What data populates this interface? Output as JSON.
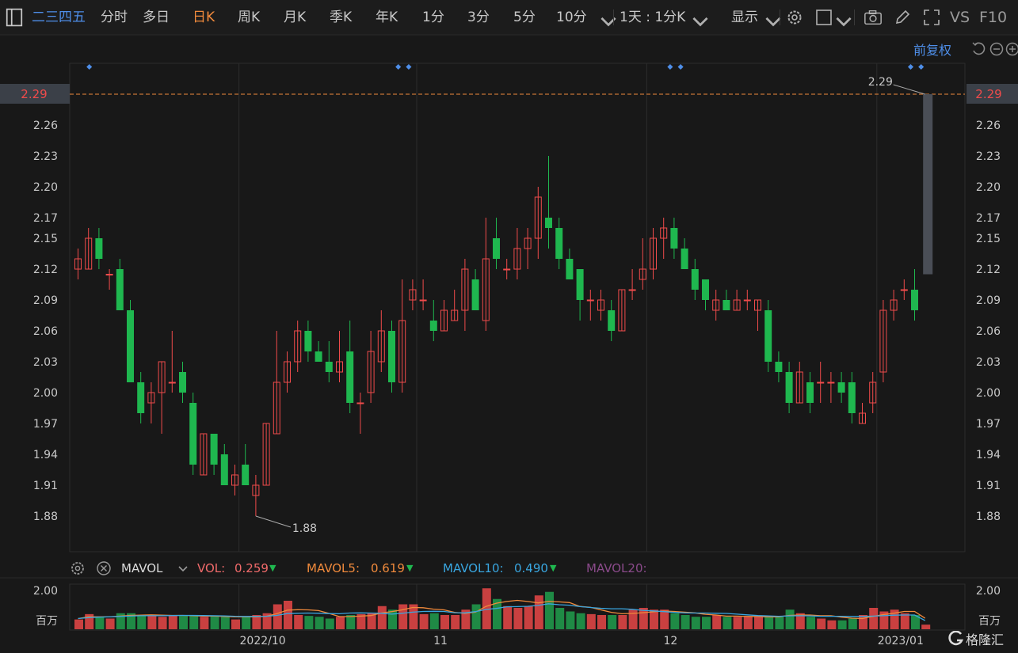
{
  "toolbar": {
    "stock_name": "二三四五",
    "tabs": [
      "分时",
      "多日",
      "日K",
      "周K",
      "月K",
      "季K",
      "年K",
      "1分",
      "3分",
      "5分",
      "10分"
    ],
    "active_tab": "日K",
    "period_select": "1天 : 1分K",
    "display_label": "显示",
    "vs_label": "VS",
    "f10_label": "F10"
  },
  "adjust_label": "前复权",
  "colors": {
    "up": "#f04b4b",
    "down": "#1fb74f",
    "accent": "#f08a3c",
    "link": "#4e8ee8",
    "background": "#181818"
  },
  "price_badge": "2.29",
  "indicator": {
    "name": "MAVOL",
    "vol_label": "VOL:",
    "vol_value": "0.259",
    "mavol5_label": "MAVOL5:",
    "mavol5_value": "0.619",
    "mavol10_label": "MAVOL10:",
    "mavol10_value": "0.490",
    "mavol20_label": "MAVOL20:"
  },
  "chart_data": {
    "type": "candlestick",
    "ylim": [
      1.86,
      2.32
    ],
    "yticks": [
      "2.29",
      "2.26",
      "2.23",
      "2.20",
      "2.17",
      "2.15",
      "2.12",
      "2.09",
      "2.06",
      "2.03",
      "2.00",
      "1.97",
      "1.94",
      "1.91",
      "1.88"
    ],
    "xticks": [
      "2022/10",
      "11",
      "12",
      "2023/01"
    ],
    "last_price": "2.29",
    "high_annotation": "2.29",
    "low_annotation": "1.88",
    "candles": [
      {
        "o": 2.12,
        "h": 2.14,
        "l": 2.11,
        "c": 2.13
      },
      {
        "o": 2.12,
        "h": 2.16,
        "l": 2.12,
        "c": 2.15
      },
      {
        "o": 2.15,
        "h": 2.16,
        "l": 2.12,
        "c": 2.13
      },
      {
        "o": 2.115,
        "h": 2.12,
        "l": 2.1,
        "c": 2.115
      },
      {
        "o": 2.12,
        "h": 2.13,
        "l": 2.08,
        "c": 2.08
      },
      {
        "o": 2.08,
        "h": 2.09,
        "l": 2.01,
        "c": 2.01
      },
      {
        "o": 2.01,
        "h": 2.02,
        "l": 1.97,
        "c": 1.98
      },
      {
        "o": 1.99,
        "h": 2.01,
        "l": 1.97,
        "c": 2.0
      },
      {
        "o": 2.0,
        "h": 2.03,
        "l": 1.96,
        "c": 2.03
      },
      {
        "o": 2.01,
        "h": 2.06,
        "l": 2.0,
        "c": 2.01
      },
      {
        "o": 2.02,
        "h": 2.03,
        "l": 1.99,
        "c": 2.0
      },
      {
        "o": 1.99,
        "h": 2.0,
        "l": 1.92,
        "c": 1.93
      },
      {
        "o": 1.92,
        "h": 1.96,
        "l": 1.92,
        "c": 1.96
      },
      {
        "o": 1.96,
        "h": 1.96,
        "l": 1.92,
        "c": 1.93
      },
      {
        "o": 1.94,
        "h": 1.95,
        "l": 1.91,
        "c": 1.91
      },
      {
        "o": 1.91,
        "h": 1.93,
        "l": 1.9,
        "c": 1.92
      },
      {
        "o": 1.93,
        "h": 1.95,
        "l": 1.91,
        "c": 1.91
      },
      {
        "o": 1.9,
        "h": 1.92,
        "l": 1.88,
        "c": 1.91
      },
      {
        "o": 1.91,
        "h": 1.97,
        "l": 1.91,
        "c": 1.97
      },
      {
        "o": 1.96,
        "h": 2.06,
        "l": 1.96,
        "c": 2.01
      },
      {
        "o": 2.01,
        "h": 2.04,
        "l": 2.0,
        "c": 2.03
      },
      {
        "o": 2.03,
        "h": 2.07,
        "l": 2.02,
        "c": 2.06
      },
      {
        "o": 2.06,
        "h": 2.07,
        "l": 2.03,
        "c": 2.04
      },
      {
        "o": 2.04,
        "h": 2.05,
        "l": 2.03,
        "c": 2.03
      },
      {
        "o": 2.03,
        "h": 2.05,
        "l": 2.01,
        "c": 2.02
      },
      {
        "o": 2.02,
        "h": 2.06,
        "l": 2.01,
        "c": 2.03
      },
      {
        "o": 2.04,
        "h": 2.07,
        "l": 1.98,
        "c": 1.99
      },
      {
        "o": 1.99,
        "h": 2.0,
        "l": 1.96,
        "c": 1.99
      },
      {
        "o": 2.0,
        "h": 2.06,
        "l": 1.99,
        "c": 2.04
      },
      {
        "o": 2.03,
        "h": 2.08,
        "l": 2.02,
        "c": 2.06
      },
      {
        "o": 2.06,
        "h": 2.07,
        "l": 2.0,
        "c": 2.01
      },
      {
        "o": 2.01,
        "h": 2.11,
        "l": 2.0,
        "c": 2.07
      },
      {
        "o": 2.09,
        "h": 2.11,
        "l": 2.08,
        "c": 2.1
      },
      {
        "o": 2.09,
        "h": 2.11,
        "l": 2.08,
        "c": 2.09
      },
      {
        "o": 2.07,
        "h": 2.09,
        "l": 2.05,
        "c": 2.06
      },
      {
        "o": 2.06,
        "h": 2.09,
        "l": 2.06,
        "c": 2.08
      },
      {
        "o": 2.07,
        "h": 2.1,
        "l": 2.07,
        "c": 2.08
      },
      {
        "o": 2.08,
        "h": 2.13,
        "l": 2.06,
        "c": 2.12
      },
      {
        "o": 2.11,
        "h": 2.12,
        "l": 2.08,
        "c": 2.08
      },
      {
        "o": 2.07,
        "h": 2.17,
        "l": 2.06,
        "c": 2.13
      },
      {
        "o": 2.15,
        "h": 2.17,
        "l": 2.12,
        "c": 2.13
      },
      {
        "o": 2.12,
        "h": 2.13,
        "l": 2.11,
        "c": 2.12
      },
      {
        "o": 2.12,
        "h": 2.16,
        "l": 2.11,
        "c": 2.14
      },
      {
        "o": 2.14,
        "h": 2.16,
        "l": 2.12,
        "c": 2.15
      },
      {
        "o": 2.15,
        "h": 2.2,
        "l": 2.13,
        "c": 2.19
      },
      {
        "o": 2.17,
        "h": 2.23,
        "l": 2.14,
        "c": 2.16
      },
      {
        "o": 2.16,
        "h": 2.17,
        "l": 2.12,
        "c": 2.13
      },
      {
        "o": 2.13,
        "h": 2.14,
        "l": 2.11,
        "c": 2.11
      },
      {
        "o": 2.12,
        "h": 2.12,
        "l": 2.07,
        "c": 2.09
      },
      {
        "o": 2.09,
        "h": 2.1,
        "l": 2.07,
        "c": 2.09
      },
      {
        "o": 2.08,
        "h": 2.1,
        "l": 2.07,
        "c": 2.09
      },
      {
        "o": 2.08,
        "h": 2.09,
        "l": 2.05,
        "c": 2.06
      },
      {
        "o": 2.06,
        "h": 2.1,
        "l": 2.06,
        "c": 2.1
      },
      {
        "o": 2.1,
        "h": 2.12,
        "l": 2.09,
        "c": 2.1
      },
      {
        "o": 2.11,
        "h": 2.15,
        "l": 2.1,
        "c": 2.12
      },
      {
        "o": 2.12,
        "h": 2.16,
        "l": 2.11,
        "c": 2.15
      },
      {
        "o": 2.15,
        "h": 2.17,
        "l": 2.13,
        "c": 2.16
      },
      {
        "o": 2.16,
        "h": 2.17,
        "l": 2.13,
        "c": 2.14
      },
      {
        "o": 2.14,
        "h": 2.15,
        "l": 2.12,
        "c": 2.12
      },
      {
        "o": 2.12,
        "h": 2.13,
        "l": 2.09,
        "c": 2.1
      },
      {
        "o": 2.11,
        "h": 2.11,
        "l": 2.08,
        "c": 2.09
      },
      {
        "o": 2.08,
        "h": 2.1,
        "l": 2.07,
        "c": 2.09
      },
      {
        "o": 2.09,
        "h": 2.1,
        "l": 2.08,
        "c": 2.08
      },
      {
        "o": 2.08,
        "h": 2.1,
        "l": 2.08,
        "c": 2.09
      },
      {
        "o": 2.09,
        "h": 2.1,
        "l": 2.08,
        "c": 2.09
      },
      {
        "o": 2.08,
        "h": 2.09,
        "l": 2.06,
        "c": 2.09
      },
      {
        "o": 2.08,
        "h": 2.09,
        "l": 2.02,
        "c": 2.03
      },
      {
        "o": 2.03,
        "h": 2.04,
        "l": 2.01,
        "c": 2.02
      },
      {
        "o": 2.02,
        "h": 2.03,
        "l": 1.98,
        "c": 1.99
      },
      {
        "o": 1.99,
        "h": 2.03,
        "l": 1.99,
        "c": 2.02
      },
      {
        "o": 2.01,
        "h": 2.02,
        "l": 1.98,
        "c": 1.99
      },
      {
        "o": 2.01,
        "h": 2.03,
        "l": 1.99,
        "c": 2.01
      },
      {
        "o": 2.01,
        "h": 2.02,
        "l": 1.99,
        "c": 2.01
      },
      {
        "o": 2.01,
        "h": 2.02,
        "l": 1.99,
        "c": 2.0
      },
      {
        "o": 2.01,
        "h": 2.02,
        "l": 1.97,
        "c": 1.98
      },
      {
        "o": 1.97,
        "h": 1.99,
        "l": 1.97,
        "c": 1.98
      },
      {
        "o": 1.99,
        "h": 2.02,
        "l": 1.98,
        "c": 2.01
      },
      {
        "o": 2.02,
        "h": 2.09,
        "l": 2.01,
        "c": 2.08
      },
      {
        "o": 2.08,
        "h": 2.1,
        "l": 2.07,
        "c": 2.09
      },
      {
        "o": 2.1,
        "h": 2.11,
        "l": 2.09,
        "c": 2.1
      },
      {
        "o": 2.1,
        "h": 2.12,
        "l": 2.07,
        "c": 2.08
      },
      {
        "o": 2.115,
        "h": 2.29,
        "l": 2.115,
        "c": 2.29,
        "live": true
      }
    ],
    "volume": {
      "ylim": [
        0,
        3.0
      ],
      "ytick_label": "2.00",
      "unit_label": "百万",
      "values": [
        0.55,
        0.85,
        0.7,
        0.6,
        0.9,
        0.9,
        0.8,
        0.75,
        0.7,
        0.8,
        0.75,
        0.8,
        0.7,
        0.75,
        0.7,
        0.55,
        0.7,
        0.8,
        0.9,
        1.4,
        1.6,
        0.8,
        0.75,
        0.7,
        0.6,
        0.7,
        0.8,
        0.85,
        0.9,
        1.3,
        1.1,
        1.4,
        1.4,
        0.85,
        0.9,
        0.8,
        0.8,
        1.1,
        1.4,
        2.3,
        1.7,
        1.3,
        1.2,
        1.3,
        1.9,
        2.1,
        1.2,
        1.0,
        0.9,
        0.85,
        0.8,
        0.8,
        0.8,
        1.1,
        1.2,
        1.1,
        1.1,
        0.9,
        0.8,
        0.7,
        0.7,
        0.8,
        0.7,
        0.7,
        0.7,
        0.7,
        0.7,
        0.7,
        1.1,
        0.9,
        0.7,
        0.6,
        0.5,
        0.5,
        0.6,
        0.8,
        1.2,
        1.0,
        1.1,
        0.9,
        0.8,
        0.259
      ],
      "mavol5": [
        0.6,
        0.7,
        0.7,
        0.7,
        0.74,
        0.78,
        0.79,
        0.81,
        0.79,
        0.78,
        0.78,
        0.76,
        0.74,
        0.74,
        0.72,
        0.7,
        0.7,
        0.7,
        0.73,
        0.87,
        1.07,
        1.1,
        1.09,
        1.05,
        0.89,
        0.71,
        0.71,
        0.74,
        0.77,
        0.91,
        0.99,
        1.09,
        1.22,
        1.21,
        1.13,
        1.09,
        0.95,
        0.89,
        0.96,
        1.28,
        1.46,
        1.56,
        1.62,
        1.56,
        1.48,
        1.56,
        1.54,
        1.5,
        1.28,
        1.23,
        1.09,
        0.95,
        0.87,
        0.89,
        0.93,
        0.98,
        1.02,
        1.0,
        0.96,
        0.92,
        0.84,
        0.8,
        0.74,
        0.74,
        0.72,
        0.72,
        0.7,
        0.7,
        0.78,
        0.8,
        0.8,
        0.76,
        0.76,
        0.68,
        0.62,
        0.6,
        0.72,
        0.82,
        0.9,
        1.0,
        1.0,
        0.619
      ],
      "mavol10": [
        0.6,
        0.65,
        0.68,
        0.7,
        0.72,
        0.74,
        0.76,
        0.76,
        0.76,
        0.77,
        0.78,
        0.78,
        0.77,
        0.76,
        0.75,
        0.73,
        0.72,
        0.72,
        0.73,
        0.78,
        0.88,
        0.9,
        0.91,
        0.9,
        0.88,
        0.87,
        0.91,
        0.92,
        0.91,
        0.9,
        0.85,
        0.9,
        0.96,
        1.0,
        1.01,
        1.0,
        0.93,
        0.92,
        0.99,
        1.11,
        1.17,
        1.26,
        1.27,
        1.29,
        1.34,
        1.43,
        1.38,
        1.35,
        1.27,
        1.22,
        1.18,
        1.15,
        1.15,
        1.12,
        1.06,
        1.03,
        0.99,
        0.95,
        0.92,
        0.91,
        0.91,
        0.9,
        0.89,
        0.85,
        0.81,
        0.77,
        0.75,
        0.73,
        0.75,
        0.76,
        0.75,
        0.73,
        0.73,
        0.73,
        0.72,
        0.72,
        0.74,
        0.76,
        0.79,
        0.8,
        0.8,
        0.49
      ]
    }
  }
}
